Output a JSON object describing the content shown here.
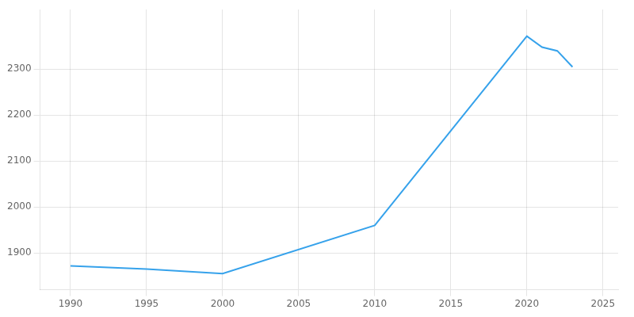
{
  "chart_data": {
    "type": "line",
    "x": [
      1990,
      1995,
      2000,
      2010,
      2020,
      2021,
      2022,
      2023
    ],
    "values": [
      1872,
      1865,
      1855,
      1960,
      2372,
      2348,
      2340,
      2305
    ],
    "xlim": [
      1988,
      2026
    ],
    "xticks": [
      1990,
      1995,
      2000,
      2005,
      2010,
      2015,
      2020,
      2025
    ],
    "ylim": [
      1820,
      2430
    ],
    "yticks": [
      1900,
      2000,
      2100,
      2200,
      2300
    ],
    "grid": true
  }
}
